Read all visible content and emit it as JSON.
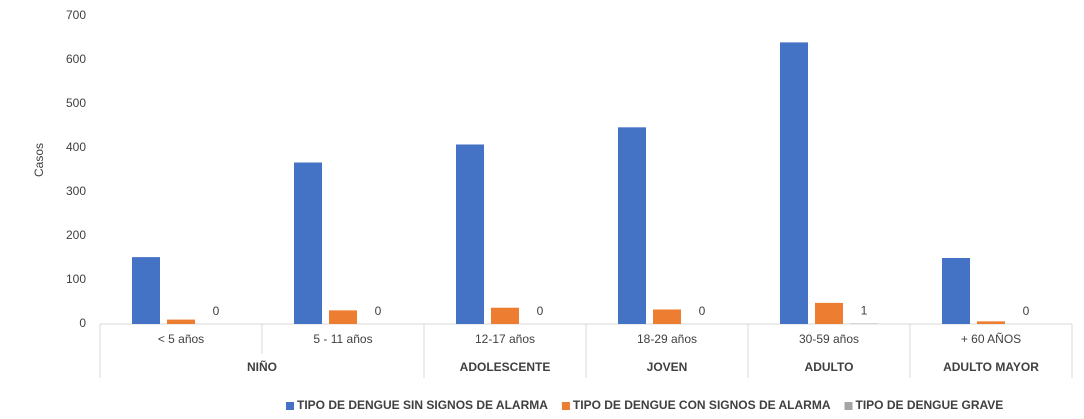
{
  "chart_data": {
    "type": "bar",
    "y_label": "Casos",
    "categories": [
      "< 5 años",
      "5 - 11 años",
      "12-17 años",
      "18-29 años",
      "30-59 años",
      "+ 60 AÑOS"
    ],
    "groups": [
      "NIÑO",
      null,
      "ADOLESCENTE",
      "JOVEN",
      "ADULTO",
      "ADULTO MAYOR"
    ],
    "series": [
      {
        "name": "TIPO DE DENGUE SIN SIGNOS DE ALARMA",
        "color": "#4472c4",
        "values": [
          152,
          367,
          408,
          447,
          640,
          150
        ]
      },
      {
        "name": "TIPO DE DENGUE CON SIGNOS DE ALARMA",
        "color": "#ed7d31",
        "values": [
          10,
          31,
          37,
          33,
          48,
          6
        ]
      },
      {
        "name": "TIPO DE DENGUE GRAVE",
        "color": "#a5a5a5",
        "values": [
          0,
          0,
          0,
          0,
          1,
          0
        ],
        "labels": true
      }
    ],
    "ylim": [
      0,
      700
    ],
    "yticks": [
      0,
      100,
      200,
      300,
      400,
      500,
      600,
      700
    ],
    "grid": false,
    "legend": "bottom"
  }
}
